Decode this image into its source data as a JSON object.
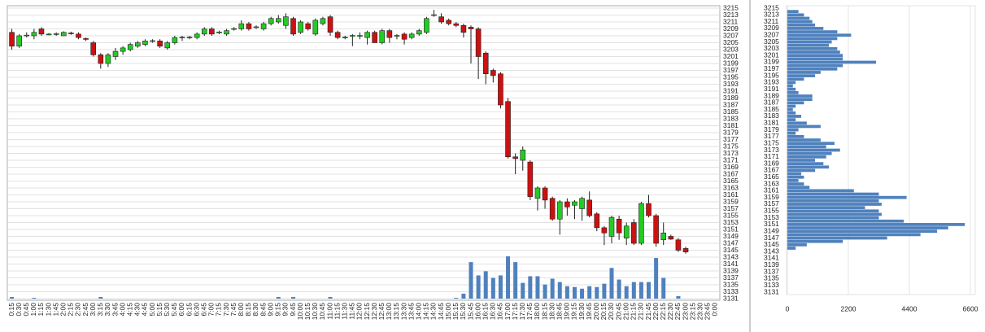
{
  "chart_data": [
    {
      "type": "candlestick",
      "categories": [
        "0:15",
        "0:30",
        "0:45",
        "1:00",
        "1:15",
        "1:30",
        "1:45",
        "2:00",
        "2:15",
        "2:30",
        "2:45",
        "3:00",
        "3:15",
        "3:30",
        "3:45",
        "4:00",
        "4:15",
        "4:30",
        "4:45",
        "5:00",
        "5:15",
        "5:30",
        "5:45",
        "6:00",
        "6:15",
        "6:30",
        "6:45",
        "7:00",
        "7:15",
        "7:30",
        "7:45",
        "8:00",
        "8:15",
        "8:30",
        "8:45",
        "9:00",
        "9:15",
        "9:30",
        "9:45",
        "10:00",
        "10:15",
        "10:30",
        "10:45",
        "11:00",
        "11:15",
        "11:30",
        "11:45",
        "12:00",
        "12:15",
        "12:30",
        "12:45",
        "13:00",
        "13:15",
        "13:30",
        "13:45",
        "14:00",
        "14:15",
        "14:30",
        "14:45",
        "15:00",
        "15:15",
        "15:30",
        "15:45",
        "16:00",
        "16:15",
        "16:30",
        "16:45",
        "17:00",
        "17:15",
        "17:30",
        "17:45",
        "18:00",
        "18:15",
        "18:30",
        "18:45",
        "19:00",
        "19:15",
        "19:30",
        "19:45",
        "20:00",
        "20:15",
        "20:30",
        "20:45",
        "21:00",
        "21:15",
        "21:30",
        "21:45",
        "22:00",
        "22:15",
        "22:30",
        "22:45",
        "23:00",
        "23:15",
        "23:30",
        "23:45",
        "0:00"
      ],
      "open": [
        3208,
        3204,
        3207,
        3207,
        3209,
        3207.5,
        3207.5,
        3207,
        3207.8,
        3207.5,
        3206.2,
        3205,
        3201.5,
        3199,
        3201,
        3202.5,
        3203,
        3204,
        3204.5,
        3205.5,
        3205.5,
        3203.5,
        3205,
        3206.5,
        3206.5,
        3206.5,
        3207.5,
        3209,
        3208,
        3207.5,
        3209,
        3209,
        3210.5,
        3209.5,
        3209,
        3210.5,
        3211,
        3210,
        3212,
        3208,
        3210.5,
        3207.5,
        3210.5,
        3212.5,
        3208,
        3206.5,
        3207,
        3207,
        3206.5,
        3208,
        3205,
        3208.5,
        3207,
        3207.5,
        3206.5,
        3207.5,
        3208,
        3213,
        3212.5,
        3211.5,
        3210.5,
        3210,
        3209.5,
        3209,
        3202,
        3197,
        3196,
        3188,
        3172,
        3171,
        3170.5,
        3160,
        3163,
        3160,
        3154,
        3159,
        3158,
        3157,
        3159.5,
        3155.5,
        3151.5,
        3149,
        3154,
        3148.5,
        3153,
        3147,
        3158.5,
        3155,
        3148,
        3149,
        3148,
        3145.5,
        null,
        null,
        null,
        null
      ],
      "high": [
        3209,
        3207.5,
        3208,
        3209,
        3209.5,
        3207.8,
        3208,
        3208.3,
        3208.2,
        3208,
        3206.5,
        3205.5,
        3202,
        3202,
        3203.5,
        3204,
        3205,
        3205.5,
        3206,
        3206,
        3206,
        3205.5,
        3207,
        3207,
        3207,
        3208,
        3209.5,
        3209.5,
        3208.5,
        3209,
        3209.5,
        3211.5,
        3211,
        3210,
        3211,
        3212.5,
        3213,
        3213.5,
        3212.5,
        3211.5,
        3211,
        3212,
        3212.5,
        3213,
        3208.5,
        3207,
        3207.5,
        3208,
        3208.5,
        3208.5,
        3209,
        3209,
        3207.5,
        3208,
        3208,
        3209,
        3212.5,
        3214.5,
        3213.5,
        3212,
        3211,
        3210.5,
        3210,
        3209.5,
        3202.5,
        3197.5,
        3196.5,
        3189,
        3173,
        3175,
        3171,
        3163.5,
        3163.5,
        3160.5,
        3159.5,
        3160,
        3159.5,
        3160.5,
        3162,
        3156,
        3152,
        3155,
        3155,
        3153,
        3154,
        3159,
        3161,
        3155.5,
        3153,
        3149.5,
        3148.5,
        3146,
        null,
        null,
        null,
        null
      ],
      "low": [
        3203,
        3203.5,
        3206.5,
        3206,
        3207,
        3207.2,
        3207,
        3207,
        3207.3,
        3206,
        3205.5,
        3201,
        3197.5,
        3198,
        3200,
        3201.5,
        3202.5,
        3203.5,
        3204,
        3205,
        3203.5,
        3203,
        3204.5,
        3205.5,
        3206,
        3206,
        3207,
        3207,
        3207.5,
        3207,
        3208.5,
        3208.5,
        3208.5,
        3209,
        3208.5,
        3210,
        3210.5,
        3209,
        3207,
        3207.5,
        3208.5,
        3207,
        3210,
        3207,
        3206,
        3206,
        3204,
        3206,
        3204.5,
        3205,
        3204.5,
        3205,
        3206,
        3204.5,
        3206,
        3207,
        3207.5,
        3212.5,
        3210.5,
        3210,
        3209.5,
        3206.5,
        3199,
        3194.5,
        3193,
        3193.5,
        3186,
        3171.5,
        3167,
        3168,
        3159.5,
        3156.5,
        3157,
        3153.5,
        3149.5,
        3155,
        3154,
        3153.5,
        3154.5,
        3150.5,
        3146.5,
        3147,
        3148,
        3146.5,
        3146.5,
        3146.5,
        3154.5,
        3146,
        3146.5,
        3148,
        3144.5,
        3144,
        null,
        null,
        null,
        null
      ],
      "close": [
        3204,
        3207,
        3207.2,
        3208,
        3207.5,
        3207.5,
        3207.6,
        3208,
        3207.6,
        3206.5,
        3206,
        3201.5,
        3199,
        3201.5,
        3202.5,
        3203.5,
        3204.5,
        3205,
        3205.5,
        3205.6,
        3204,
        3205,
        3206.5,
        3206.6,
        3206.6,
        3207.5,
        3209,
        3207.5,
        3208.1,
        3208.5,
        3209.1,
        3210.5,
        3209,
        3209.6,
        3210.5,
        3212,
        3212,
        3212.5,
        3207.5,
        3211,
        3209,
        3211.5,
        3212,
        3208,
        3206.5,
        3206.6,
        3207.1,
        3207.1,
        3208,
        3205,
        3208.5,
        3206.5,
        3207.1,
        3206,
        3207.5,
        3208.5,
        3212,
        3213.1,
        3211,
        3210.5,
        3210,
        3208,
        3209,
        3201,
        3196,
        3195.5,
        3187,
        3172,
        3171.5,
        3174,
        3160.5,
        3163,
        3159.5,
        3154,
        3159,
        3157.5,
        3159,
        3160,
        3155,
        3151.5,
        3150,
        3154.5,
        3150,
        3152,
        3147,
        3158.5,
        3155,
        3147,
        3150,
        3148.2,
        3145,
        3144.5,
        null,
        null,
        null,
        null
      ],
      "volume": [
        200,
        0,
        0,
        100,
        0,
        0,
        0,
        0,
        0,
        0,
        0,
        0,
        200,
        0,
        0,
        0,
        0,
        0,
        0,
        0,
        0,
        0,
        0,
        0,
        0,
        0,
        0,
        0,
        0,
        0,
        0,
        0,
        0,
        0,
        0,
        0,
        200,
        0,
        200,
        0,
        0,
        0,
        0,
        200,
        0,
        0,
        0,
        0,
        0,
        0,
        0,
        0,
        0,
        0,
        0,
        0,
        0,
        0,
        0,
        0,
        100,
        600,
        4400,
        2800,
        3300,
        2500,
        2800,
        5100,
        4400,
        1900,
        2700,
        2700,
        1700,
        2400,
        2000,
        1500,
        1400,
        1200,
        1500,
        1400,
        1800,
        3700,
        2300,
        1500,
        2000,
        2000,
        2000,
        4900,
        2500,
        0,
        300,
        0,
        null,
        null,
        null,
        null
      ],
      "up_color": "#22cc22",
      "down_color": "#cc1111",
      "volume_color": "#4f81bd",
      "ylim": [
        3131,
        3215
      ],
      "yticks": [
        3131,
        3133,
        3135,
        3137,
        3139,
        3141,
        3143,
        3145,
        3147,
        3149,
        3151,
        3153,
        3155,
        3157,
        3159,
        3161,
        3163,
        3165,
        3167,
        3169,
        3171,
        3173,
        3175,
        3177,
        3179,
        3181,
        3183,
        3185,
        3187,
        3189,
        3191,
        3193,
        3195,
        3197,
        3199,
        3201,
        3203,
        3205,
        3207,
        3209,
        3211,
        3213,
        3215
      ],
      "grid": true
    },
    {
      "type": "hbar",
      "levels": [
        3214,
        3213,
        3212,
        3211,
        3210,
        3209,
        3208,
        3207,
        3206,
        3205,
        3204,
        3203,
        3202,
        3201,
        3200,
        3199,
        3198,
        3197,
        3196,
        3195,
        3194,
        3193,
        3192,
        3191,
        3190,
        3189,
        3188,
        3187,
        3186,
        3185,
        3184,
        3183,
        3182,
        3181,
        3180,
        3179,
        3178,
        3177,
        3176,
        3175,
        3174,
        3173,
        3172,
        3171,
        3170,
        3169,
        3168,
        3167,
        3166,
        3165,
        3164,
        3163,
        3162,
        3161,
        3160,
        3159,
        3158,
        3157,
        3156,
        3155,
        3154,
        3153,
        3152,
        3151,
        3150,
        3149,
        3148,
        3147,
        3146,
        3145,
        3144
      ],
      "values": [
        400,
        600,
        800,
        900,
        1000,
        1300,
        1800,
        2300,
        1800,
        1600,
        1500,
        1800,
        1900,
        2000,
        2000,
        3200,
        2000,
        1800,
        1200,
        1000,
        600,
        300,
        200,
        300,
        400,
        900,
        900,
        600,
        300,
        200,
        300,
        500,
        300,
        700,
        1200,
        400,
        300,
        600,
        1200,
        1700,
        1400,
        1900,
        1600,
        1400,
        1000,
        1300,
        1500,
        1000,
        500,
        600,
        400,
        600,
        800,
        2400,
        3300,
        4300,
        3300,
        3400,
        2800,
        3300,
        3400,
        3300,
        4200,
        6400,
        5800,
        5400,
        4800,
        3600,
        2000,
        700,
        300
      ],
      "color": "#4f81bd",
      "ylim": [
        3131,
        3215
      ],
      "yticks": [
        3131,
        3133,
        3135,
        3137,
        3139,
        3141,
        3143,
        3145,
        3147,
        3149,
        3151,
        3153,
        3155,
        3157,
        3159,
        3161,
        3163,
        3165,
        3167,
        3169,
        3171,
        3173,
        3175,
        3177,
        3179,
        3181,
        3183,
        3185,
        3187,
        3189,
        3191,
        3193,
        3195,
        3197,
        3199,
        3201,
        3203,
        3205,
        3207,
        3209,
        3211,
        3213,
        3215
      ],
      "xlim": [
        0,
        6600
      ],
      "xticks": [
        0,
        2200,
        4400,
        6600
      ],
      "grid": true
    }
  ]
}
